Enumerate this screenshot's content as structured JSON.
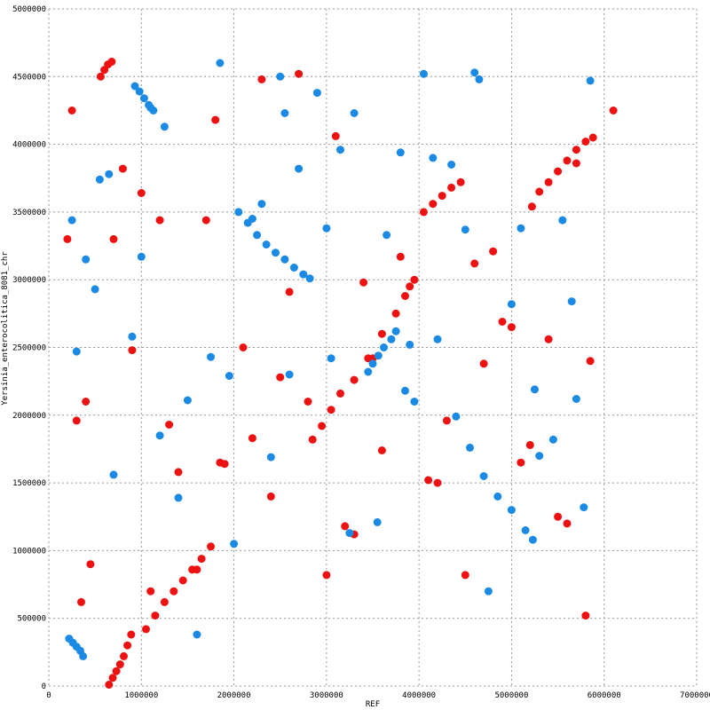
{
  "chart_data": {
    "type": "scatter",
    "title": "",
    "xlabel": "REF",
    "ylabel": "Yersinia_enterocolitica_8081_chr",
    "xlim": [
      0,
      7000000
    ],
    "ylim": [
      0,
      5000000
    ],
    "x_ticks": [
      "0",
      "1000000",
      "2000000",
      "3000000",
      "4000000",
      "5000000",
      "6000000",
      "7000000"
    ],
    "y_ticks": [
      "0",
      "500000",
      "1000000",
      "1500000",
      "2000000",
      "2500000",
      "3000000",
      "3500000",
      "4000000",
      "4500000",
      "5000000"
    ],
    "grid": true,
    "legend": "none",
    "colors": {
      "forward": "#ee1111",
      "reverse": "#1a8ae5",
      "grid": "#999999"
    },
    "series": [
      {
        "color": "#ee1111",
        "x": [
          650000,
          690000,
          730000,
          770000,
          810000,
          850000,
          890000,
          1050000,
          1150000,
          1250000,
          1350000,
          1450000,
          1550000,
          1650000,
          1750000,
          1850000,
          2850000,
          2950000,
          3050000,
          3150000,
          3300000,
          3450000,
          3600000,
          3750000,
          3850000,
          3950000,
          4050000,
          4150000,
          4250000,
          4350000,
          4450000,
          5220000,
          5300000,
          5400000,
          5500000,
          5600000,
          5700000,
          5800000,
          5880000,
          560000,
          600000,
          640000,
          680000,
          250000,
          400000,
          700000,
          1200000,
          1800000,
          2300000,
          2700000,
          3100000,
          3500000,
          4200000,
          4700000,
          5100000,
          5600000,
          6100000,
          300000,
          900000,
          1400000,
          2100000,
          2500000,
          3300000,
          3900000,
          4600000,
          5000000,
          5700000,
          350000,
          1000000,
          1600000,
          2200000,
          2800000,
          3400000,
          4100000,
          4800000,
          5400000,
          5850000,
          450000,
          1100000,
          1700000,
          2400000,
          3000000,
          3600000,
          4300000,
          4900000,
          5500000,
          200000,
          800000,
          1300000,
          1900000,
          2600000,
          3200000,
          3800000,
          4500000,
          5200000,
          5800000
        ],
        "y": [
          10000,
          60000,
          110000,
          160000,
          220000,
          300000,
          380000,
          420000,
          520000,
          620000,
          700000,
          780000,
          860000,
          940000,
          1030000,
          1650000,
          1820000,
          1920000,
          2040000,
          2160000,
          2260000,
          2420000,
          2600000,
          2750000,
          2880000,
          3000000,
          3500000,
          3560000,
          3620000,
          3680000,
          3720000,
          3540000,
          3650000,
          3720000,
          3800000,
          3880000,
          3960000,
          4020000,
          4050000,
          4500000,
          4550000,
          4590000,
          4610000,
          4250000,
          2100000,
          3300000,
          3440000,
          4180000,
          4480000,
          4520000,
          4060000,
          2420000,
          1500000,
          2380000,
          1650000,
          1200000,
          4250000,
          1960000,
          2480000,
          1580000,
          2500000,
          2280000,
          1120000,
          2950000,
          3120000,
          2650000,
          3860000,
          620000,
          3640000,
          860000,
          1830000,
          2100000,
          2980000,
          1520000,
          3210000,
          2560000,
          2400000,
          900000,
          700000,
          3440000,
          1400000,
          820000,
          1740000,
          1960000,
          2690000,
          1250000,
          3300000,
          3820000,
          1930000,
          1640000,
          2910000,
          1180000,
          3170000,
          820000,
          1780000,
          520000
        ]
      },
      {
        "color": "#1a8ae5",
        "x": [
          930000,
          980000,
          1030000,
          1080000,
          1130000,
          2050000,
          2150000,
          2250000,
          2350000,
          2450000,
          2550000,
          2650000,
          2750000,
          2820000,
          4400000,
          4550000,
          4700000,
          4850000,
          5000000,
          5150000,
          5230000,
          220000,
          260000,
          300000,
          340000,
          370000,
          3450000,
          3500000,
          3560000,
          3620000,
          3700000,
          3750000,
          3850000,
          3950000,
          400000,
          550000,
          900000,
          1250000,
          1600000,
          1850000,
          2200000,
          2500000,
          2900000,
          3150000,
          3300000,
          3800000,
          4050000,
          4350000,
          4650000,
          5100000,
          5550000,
          5850000,
          300000,
          700000,
          1100000,
          1500000,
          2000000,
          2400000,
          2700000,
          3050000,
          3650000,
          4200000,
          4750000,
          5300000,
          5700000,
          250000,
          650000,
          1200000,
          1750000,
          2300000,
          2600000,
          3250000,
          3900000,
          4500000,
          5000000,
          5450000,
          5780000,
          500000,
          1000000,
          1400000,
          1950000,
          2550000,
          3000000,
          3550000,
          4150000,
          4600000,
          5250000,
          5650000
        ],
        "y": [
          4430000,
          4390000,
          4340000,
          4290000,
          4250000,
          3500000,
          3420000,
          3330000,
          3260000,
          3200000,
          3150000,
          3090000,
          3040000,
          3010000,
          1990000,
          1760000,
          1550000,
          1400000,
          1300000,
          1150000,
          1080000,
          350000,
          320000,
          290000,
          260000,
          220000,
          2320000,
          2380000,
          2440000,
          2500000,
          2560000,
          2620000,
          2180000,
          2100000,
          3150000,
          3740000,
          2580000,
          4130000,
          380000,
          4600000,
          3450000,
          4500000,
          4380000,
          3960000,
          4230000,
          3940000,
          4520000,
          3850000,
          4480000,
          3380000,
          3440000,
          4470000,
          2470000,
          1560000,
          4270000,
          2110000,
          1050000,
          1690000,
          3820000,
          2420000,
          3330000,
          2560000,
          700000,
          1700000,
          2120000,
          3440000,
          3780000,
          1850000,
          2430000,
          3560000,
          2300000,
          1130000,
          2520000,
          3370000,
          2820000,
          1820000,
          1320000,
          2930000,
          3170000,
          1390000,
          2290000,
          4230000,
          3380000,
          1210000,
          3900000,
          4530000,
          2190000,
          2840000
        ]
      }
    ]
  }
}
